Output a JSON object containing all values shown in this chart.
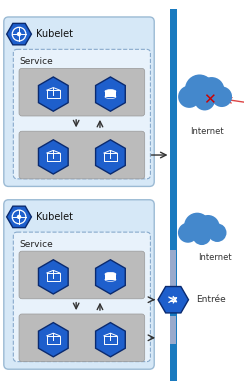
{
  "bg_color": "#ffffff",
  "panel_bg": "#d6e8f7",
  "service_bg": "#e8f2fb",
  "pod_group_bg": "#c0c0c0",
  "blue_line_color": "#1a7abf",
  "kubelet_label": "Kubelet",
  "service_label": "Service",
  "internet_label": "Internet",
  "entree_label": "Entrée",
  "pod_blue": "#1a5abf",
  "pod_outline": "#0a2a7f",
  "cloud_blue": "#4488cc",
  "ingress_blue": "#2255bb",
  "arrow_dark": "#444444",
  "red_color": "#cc0000",
  "red_arrow_color": "#dd3333",
  "connector_color": "#9ab0cc"
}
